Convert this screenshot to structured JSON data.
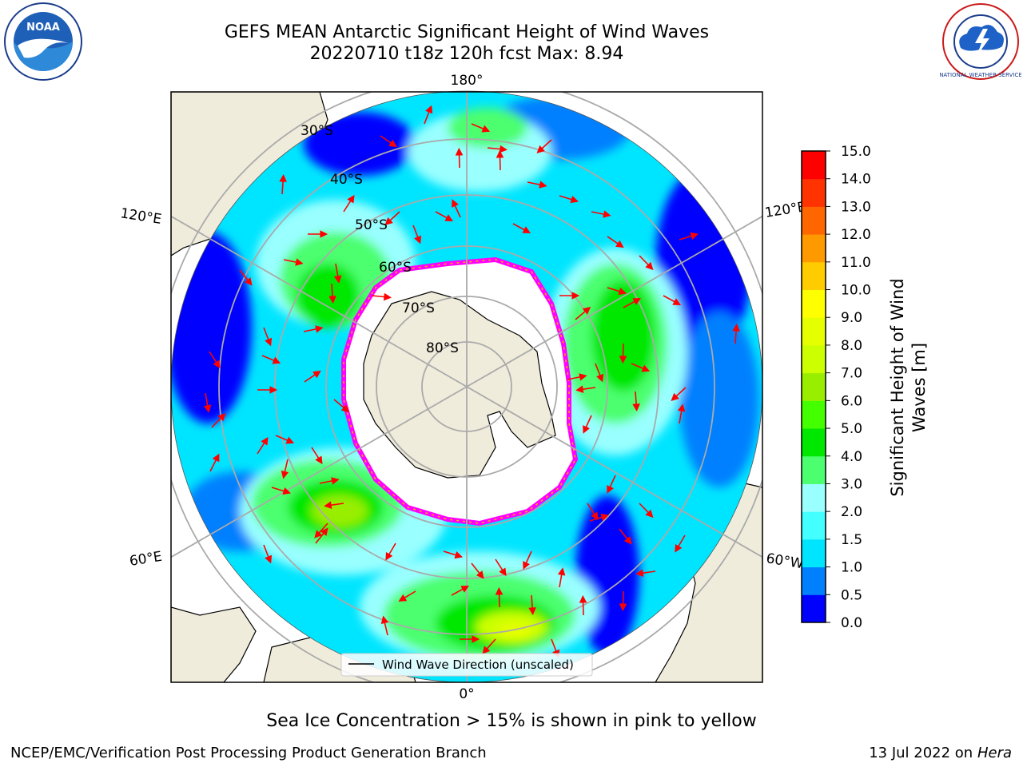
{
  "title": {
    "line1": "GEFS MEAN Antarctic Significant Height of Wind Waves",
    "line2": "20220710 t18z 120h fcst   Max: 8.94"
  },
  "map": {
    "projection": "south-polar-stereographic",
    "longitude_labels": [
      "180°",
      "120°E",
      "120°E",
      "60°E",
      "60°W",
      "0°"
    ],
    "latitude_labels": [
      "30°S",
      "40°S",
      "50°S",
      "60°S",
      "70°S",
      "80°S"
    ],
    "legend_label": "Wind Wave Direction (unscaled)",
    "arrow_color": "#ff0000",
    "land_color": "#efecdc",
    "ice_edge_colors": [
      "#ff00ff",
      "#ffb000"
    ]
  },
  "colorbar": {
    "label": "Significant Height of Wind Waves [m]",
    "ticks": [
      "0.0",
      "0.5",
      "1.0",
      "1.5",
      "2.0",
      "3.0",
      "4.0",
      "5.0",
      "6.0",
      "7.0",
      "8.0",
      "9.0",
      "10.0",
      "11.0",
      "12.0",
      "13.0",
      "14.0",
      "15.0"
    ],
    "colors": [
      "#0000ff",
      "#0080ff",
      "#00e5ff",
      "#44ffff",
      "#99ffff",
      "#4cff6e",
      "#00e800",
      "#44ff00",
      "#99ee00",
      "#ccff00",
      "#e6ff00",
      "#ffff00",
      "#ffcc00",
      "#ff9900",
      "#ff6600",
      "#ff3300",
      "#ff0000"
    ]
  },
  "note": "Sea Ice Concentration > 15% is shown in pink to yellow",
  "footer": {
    "left": "NCEP/EMC/Verification Post Processing Product Generation Branch",
    "date": "13 Jul 2022 on ",
    "machine": "Hera"
  },
  "logos": {
    "left_text": "NOAA",
    "right_text": "NATIONAL WEATHER SERVICE"
  }
}
